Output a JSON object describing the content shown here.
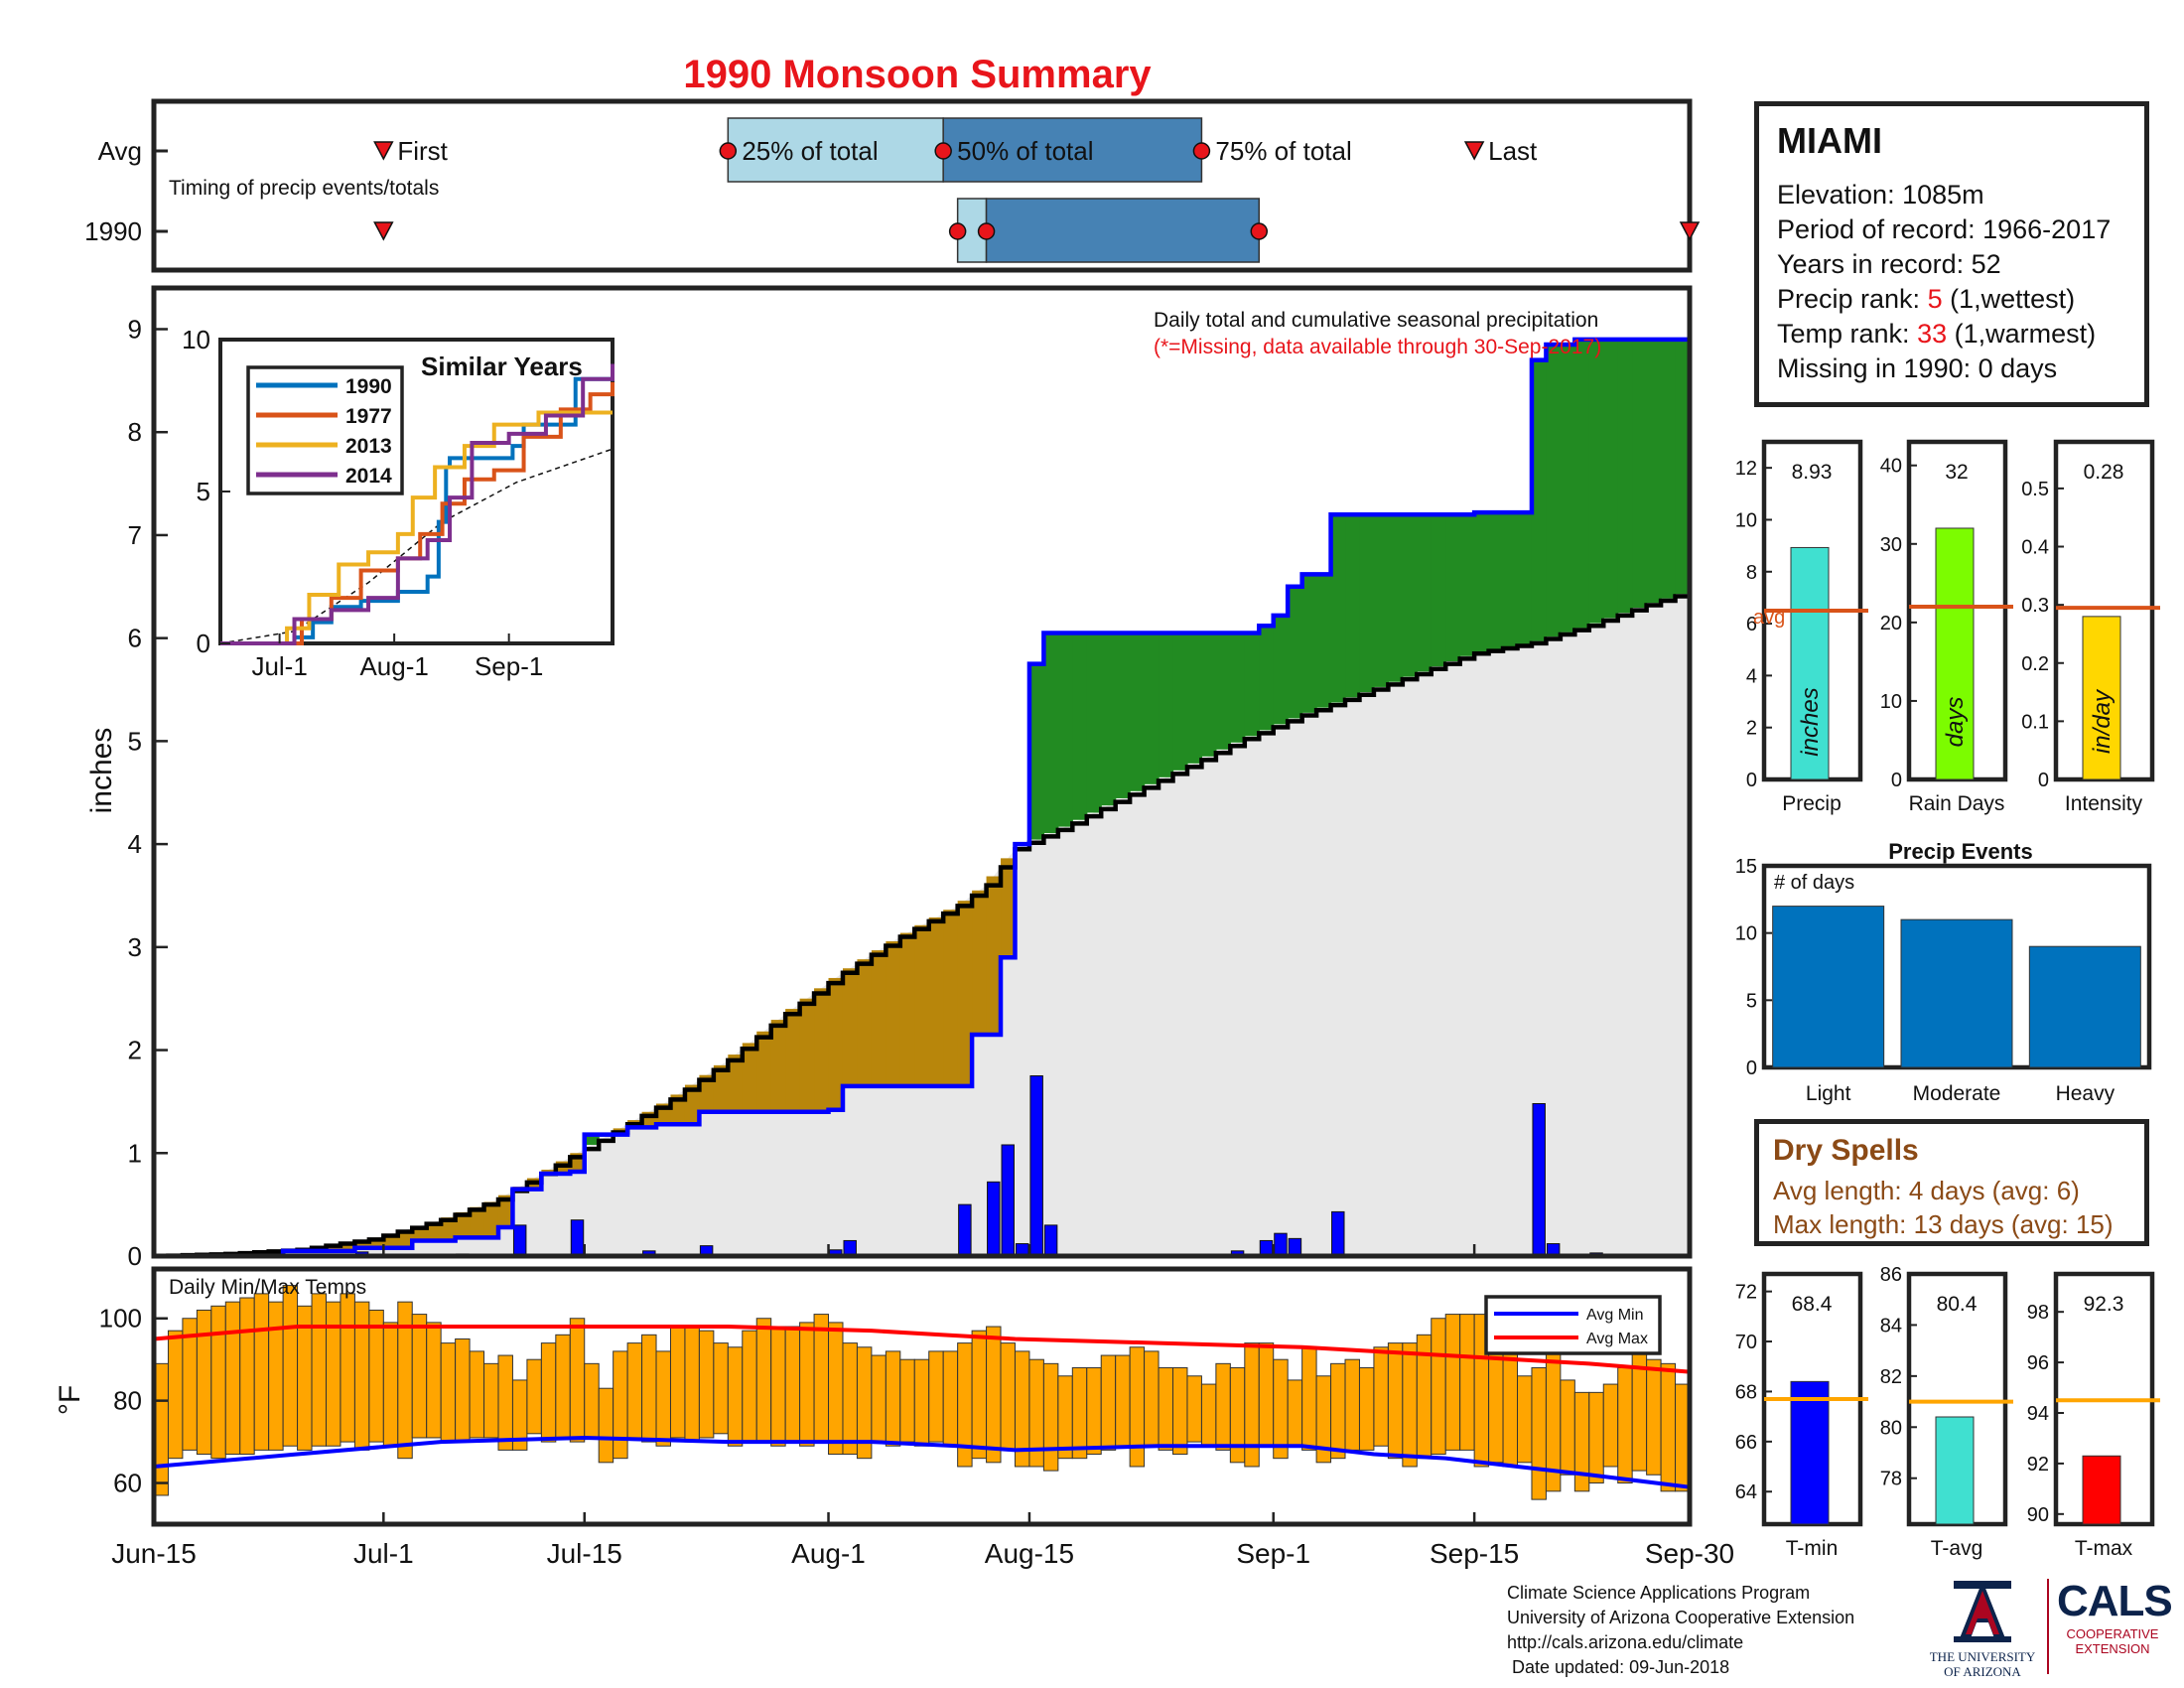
{
  "title": "1990 Monsoon Summary",
  "timing": {
    "subtitle": "Timing of precip events/totals",
    "row_labels": [
      "Avg",
      "1990"
    ],
    "avg_markers": {
      "first": "First",
      "last": "Last",
      "p25": "25% of total",
      "p50": "50% of total",
      "p75": "75% of total"
    },
    "avg_days": {
      "first": 16,
      "p25": 40,
      "p50": 55,
      "p75": 73,
      "last": 92
    },
    "year_days": {
      "first": 16,
      "p25": 56,
      "p50": 58,
      "p75": 77,
      "last": 107
    },
    "colors": {
      "light": "#add8e6",
      "dark": "#4682b4",
      "marker": "#e8151b"
    }
  },
  "station": {
    "name": "MIAMI",
    "elevation": "Elevation: 1085m",
    "period": "Period of record: 1966-2017",
    "years": "Years in record: 52",
    "precip_rank_label": "Precip rank: ",
    "precip_rank": "5",
    "precip_rank_note": " (1,wettest)",
    "temp_rank_label": "Temp rank: ",
    "temp_rank": "33",
    "temp_rank_note": " (1,warmest)",
    "missing": "Missing in 1990: 0 days"
  },
  "dry_spells": {
    "title": "Dry Spells",
    "avg_length": "Avg length: 4 days (avg: 6)",
    "max_length": "Max length: 13 days (avg: 15)"
  },
  "credits": {
    "line1": "Climate Science Applications Program",
    "line2": "University of Arizona Cooperative Extension",
    "line3": "http://cals.arizona.edu/climate",
    "line4": " Date updated: 09-Jun-2018"
  },
  "logos": {
    "ua": "THE UNIVERSITY\nOF ARIZONA",
    "cals": "CALS",
    "cals_sub": "COOPERATIVE\nEXTENSION"
  },
  "chart_data": [
    {
      "id": "cumulative_precip",
      "type": "area",
      "title": "Daily total and cumulative seasonal precipitation",
      "subtitle": "(*=Missing, data available through 30-Sep-2017)",
      "ylabel": "inches",
      "ylim": [
        0,
        9.4
      ],
      "yticks": [
        0,
        1,
        2,
        3,
        4,
        5,
        6,
        7,
        8,
        9
      ],
      "xticks": [
        "Jun-15",
        "Jul-1",
        "Jul-15",
        "Aug-1",
        "Aug-15",
        "Sep-1",
        "Sep-15",
        "Sep-30"
      ],
      "xtick_days": [
        0,
        16,
        30,
        47,
        61,
        78,
        92,
        107
      ],
      "n_days": 107,
      "year_cumulative_steps": [
        [
          0,
          0
        ],
        [
          9,
          0.05
        ],
        [
          14,
          0.08
        ],
        [
          18,
          0.15
        ],
        [
          21,
          0.18
        ],
        [
          24,
          0.28
        ],
        [
          25,
          0.65
        ],
        [
          27,
          0.8
        ],
        [
          29,
          0.82
        ],
        [
          30,
          1.18
        ],
        [
          33,
          1.25
        ],
        [
          35,
          1.28
        ],
        [
          38,
          1.4
        ],
        [
          47,
          1.42
        ],
        [
          48,
          1.65
        ],
        [
          56,
          1.65
        ],
        [
          57,
          2.15
        ],
        [
          59,
          2.9
        ],
        [
          60,
          4.0
        ],
        [
          61,
          5.75
        ],
        [
          62,
          6.05
        ],
        [
          75,
          6.05
        ],
        [
          77,
          6.12
        ],
        [
          78,
          6.22
        ],
        [
          79,
          6.5
        ],
        [
          80,
          6.62
        ],
        [
          82,
          7.2
        ],
        [
          92,
          7.22
        ],
        [
          96,
          8.7
        ],
        [
          97,
          8.85
        ],
        [
          99,
          8.9
        ],
        [
          107,
          8.9
        ]
      ],
      "avg_cumulative": [
        [
          0,
          0
        ],
        [
          5,
          0.02
        ],
        [
          10,
          0.06
        ],
        [
          15,
          0.16
        ],
        [
          20,
          0.35
        ],
        [
          24,
          0.55
        ],
        [
          28,
          0.88
        ],
        [
          32,
          1.2
        ],
        [
          36,
          1.52
        ],
        [
          40,
          1.9
        ],
        [
          44,
          2.35
        ],
        [
          48,
          2.75
        ],
        [
          52,
          3.1
        ],
        [
          56,
          3.4
        ],
        [
          58,
          3.6
        ],
        [
          60,
          3.95
        ],
        [
          64,
          4.2
        ],
        [
          68,
          4.48
        ],
        [
          72,
          4.75
        ],
        [
          76,
          5.02
        ],
        [
          80,
          5.25
        ],
        [
          84,
          5.45
        ],
        [
          88,
          5.65
        ],
        [
          92,
          5.85
        ],
        [
          96,
          5.95
        ],
        [
          100,
          6.12
        ],
        [
          104,
          6.32
        ],
        [
          107,
          6.45
        ]
      ],
      "daily_bars": [
        [
          14,
          0.04
        ],
        [
          21,
          0.02
        ],
        [
          25,
          0.3
        ],
        [
          29,
          0.35
        ],
        [
          34,
          0.05
        ],
        [
          38,
          0.1
        ],
        [
          47,
          0.06
        ],
        [
          48,
          0.15
        ],
        [
          56,
          0.5
        ],
        [
          58,
          0.72
        ],
        [
          59,
          1.08
        ],
        [
          60,
          0.12
        ],
        [
          61,
          1.75
        ],
        [
          62,
          0.3
        ],
        [
          75,
          0.05
        ],
        [
          77,
          0.15
        ],
        [
          78,
          0.22
        ],
        [
          79,
          0.17
        ],
        [
          82,
          0.43
        ],
        [
          96,
          1.48
        ],
        [
          97,
          0.12
        ],
        [
          100,
          0.03
        ]
      ],
      "colors": {
        "year_line": "#0000ff",
        "avg_line": "#000000",
        "above_avg": "#228b22",
        "below_avg": "#b8860b",
        "base": "#e8e8e8",
        "bars": "#0000ff"
      }
    },
    {
      "id": "similar_years",
      "type": "line",
      "title": "Similar Years",
      "ylim": [
        0,
        10
      ],
      "yticks": [
        0,
        5,
        10
      ],
      "xticks": [
        "Jul-1",
        "Aug-1",
        "Sep-1"
      ],
      "xtick_days": [
        16,
        47,
        78
      ],
      "series": [
        {
          "name": "1990",
          "color": "#0072bd",
          "steps": [
            [
              0,
              0
            ],
            [
              20,
              0.2
            ],
            [
              25,
              0.7
            ],
            [
              30,
              1.2
            ],
            [
              38,
              1.4
            ],
            [
              48,
              1.7
            ],
            [
              56,
              2.2
            ],
            [
              59,
              4.0
            ],
            [
              61,
              5.8
            ],
            [
              62,
              6.1
            ],
            [
              79,
              6.5
            ],
            [
              82,
              7.2
            ],
            [
              96,
              8.7
            ],
            [
              106,
              8.9
            ]
          ]
        },
        {
          "name": "1977",
          "color": "#d95319",
          "steps": [
            [
              0,
              0
            ],
            [
              22,
              0.8
            ],
            [
              30,
              1.5
            ],
            [
              38,
              2.4
            ],
            [
              48,
              2.8
            ],
            [
              54,
              3.6
            ],
            [
              60,
              4.6
            ],
            [
              66,
              5.4
            ],
            [
              74,
              5.7
            ],
            [
              82,
              6.8
            ],
            [
              92,
              7.7
            ],
            [
              100,
              8.2
            ],
            [
              106,
              8.6
            ]
          ]
        },
        {
          "name": "2013",
          "color": "#edb120",
          "steps": [
            [
              0,
              0
            ],
            [
              18,
              0.5
            ],
            [
              24,
              1.6
            ],
            [
              32,
              2.6
            ],
            [
              40,
              3.0
            ],
            [
              48,
              3.6
            ],
            [
              52,
              4.8
            ],
            [
              58,
              5.8
            ],
            [
              66,
              6.5
            ],
            [
              74,
              7.2
            ],
            [
              86,
              7.6
            ],
            [
              96,
              7.6
            ],
            [
              106,
              7.6
            ]
          ]
        },
        {
          "name": "2014",
          "color": "#7e2f8e",
          "steps": [
            [
              0,
              0
            ],
            [
              20,
              0.8
            ],
            [
              30,
              1.1
            ],
            [
              40,
              1.5
            ],
            [
              48,
              2.8
            ],
            [
              56,
              3.4
            ],
            [
              62,
              4.8
            ],
            [
              68,
              6.6
            ],
            [
              78,
              6.9
            ],
            [
              88,
              7.5
            ],
            [
              98,
              8.7
            ],
            [
              106,
              9.2
            ]
          ]
        }
      ],
      "avg_dashed": [
        [
          0,
          0
        ],
        [
          20,
          0.4
        ],
        [
          40,
          2.0
        ],
        [
          60,
          4.0
        ],
        [
          80,
          5.3
        ],
        [
          106,
          6.4
        ]
      ]
    },
    {
      "id": "temps",
      "type": "bar",
      "title": "Daily Min/Max Temps",
      "ylabel": "°F",
      "ylim": [
        50,
        112
      ],
      "yticks": [
        60,
        80,
        100
      ],
      "legend": [
        "Avg Min",
        "Avg Max"
      ],
      "daily_min": [
        57,
        66,
        68,
        67,
        66,
        67,
        67,
        68,
        68,
        69,
        68,
        69,
        69,
        70,
        68,
        70,
        69,
        66,
        71,
        71,
        70,
        70,
        71,
        71,
        68,
        68,
        72,
        70,
        71,
        70,
        71,
        65,
        66,
        71,
        70,
        69,
        71,
        70,
        71,
        72,
        69,
        70,
        70,
        69,
        70,
        69,
        70,
        67,
        67,
        66,
        70,
        69,
        70,
        69,
        70,
        69,
        64,
        66,
        65,
        68,
        64,
        64,
        63,
        66,
        66,
        67,
        68,
        69,
        64,
        69,
        68,
        67,
        70,
        69,
        68,
        65,
        64,
        69,
        66,
        69,
        68,
        65,
        66,
        68,
        68,
        69,
        66,
        64,
        66,
        67,
        68,
        68,
        64,
        65,
        64,
        65,
        56,
        58,
        62,
        58,
        60,
        64,
        60,
        63,
        62,
        58,
        58
      ],
      "daily_max": [
        89,
        97,
        100,
        102,
        103,
        104,
        105,
        106,
        104,
        108,
        103,
        106,
        104,
        106,
        104,
        102,
        99,
        104,
        101,
        99,
        94,
        95,
        92,
        89,
        91,
        85,
        90,
        94,
        96,
        100,
        89,
        83,
        92,
        94,
        96,
        92,
        98,
        98,
        97,
        94,
        93,
        97,
        100,
        98,
        98,
        99,
        101,
        99,
        94,
        93,
        91,
        92,
        90,
        90,
        92,
        92,
        94,
        97,
        98,
        94,
        92,
        90,
        89,
        86,
        88,
        88,
        91,
        91,
        93,
        92,
        88,
        88,
        86,
        84,
        89,
        88,
        94,
        94,
        90,
        85,
        93,
        86,
        89,
        90,
        88,
        93,
        94,
        94,
        96,
        100,
        101,
        101,
        101,
        98,
        94,
        86,
        88,
        92,
        85,
        82,
        82,
        84,
        88,
        92,
        90,
        89,
        84
      ],
      "avg_min": [
        [
          0,
          64
        ],
        [
          10,
          67
        ],
        [
          20,
          70
        ],
        [
          30,
          71
        ],
        [
          40,
          70
        ],
        [
          50,
          70
        ],
        [
          56,
          69
        ],
        [
          60,
          68
        ],
        [
          70,
          69
        ],
        [
          80,
          69
        ],
        [
          85,
          67
        ],
        [
          90,
          66
        ],
        [
          95,
          64
        ],
        [
          100,
          62
        ],
        [
          107,
          59
        ]
      ],
      "avg_max": [
        [
          0,
          95
        ],
        [
          10,
          98
        ],
        [
          20,
          98
        ],
        [
          30,
          98
        ],
        [
          40,
          98
        ],
        [
          50,
          97
        ],
        [
          55,
          96
        ],
        [
          60,
          95
        ],
        [
          70,
          94
        ],
        [
          80,
          93
        ],
        [
          85,
          92
        ],
        [
          90,
          91
        ],
        [
          95,
          90
        ],
        [
          100,
          89
        ],
        [
          107,
          87
        ]
      ],
      "colors": {
        "bars": "#ffa500",
        "avg_min": "#0000ff",
        "avg_max": "#ff0000"
      }
    },
    {
      "id": "seasonal_totals",
      "type": "bar",
      "panels": [
        {
          "xlabel": "Precip",
          "value": 8.93,
          "label": "8.93",
          "avg": 6.5,
          "avg_label": "avg",
          "ylim": [
            0,
            13
          ],
          "yticks": [
            0,
            2,
            4,
            6,
            8,
            10,
            12
          ],
          "unit": "inches",
          "color": "#40e0d0"
        },
        {
          "xlabel": "Rain Days",
          "value": 32,
          "label": "32",
          "avg": 22,
          "ylim": [
            0,
            43
          ],
          "yticks": [
            0,
            10,
            20,
            30,
            40
          ],
          "unit": "days",
          "color": "#7cfc00"
        },
        {
          "xlabel": "Intensity",
          "value": 0.28,
          "label": "0.28",
          "avg": 0.295,
          "ylim": [
            0,
            0.58
          ],
          "yticks": [
            0,
            0.1,
            0.2,
            0.3,
            0.4,
            0.5
          ],
          "unit": "in/day",
          "color": "#ffd700"
        }
      ],
      "avg_color": "#d95319"
    },
    {
      "id": "precip_events",
      "type": "bar",
      "title": "Precip Events",
      "ylabel": "# of days",
      "categories": [
        "Light",
        "Moderate",
        "Heavy"
      ],
      "values": [
        12,
        11,
        9
      ],
      "ylim": [
        0,
        15
      ],
      "yticks": [
        0,
        5,
        10,
        15
      ],
      "color": "#0072bd"
    },
    {
      "id": "seasonal_temps",
      "type": "bar",
      "panels": [
        {
          "xlabel": "T-min",
          "value": 68.4,
          "label": "68.4",
          "avg": 67.7,
          "ylim": [
            62.7,
            72.7
          ],
          "yticks": [
            64,
            66,
            68,
            70,
            72
          ],
          "color": "#0000ff"
        },
        {
          "xlabel": "T-avg",
          "value": 80.4,
          "label": "80.4",
          "avg": 81.0,
          "ylim": [
            76.2,
            86.0
          ],
          "yticks": [
            78,
            80,
            82,
            84,
            86
          ],
          "color": "#40e0d0"
        },
        {
          "xlabel": "T-max",
          "value": 92.3,
          "label": "92.3",
          "avg": 94.5,
          "ylim": [
            89.6,
            99.5
          ],
          "yticks": [
            90,
            92,
            94,
            96,
            98
          ],
          "color": "#ff0000"
        }
      ],
      "avg_color": "#ffa500"
    }
  ]
}
